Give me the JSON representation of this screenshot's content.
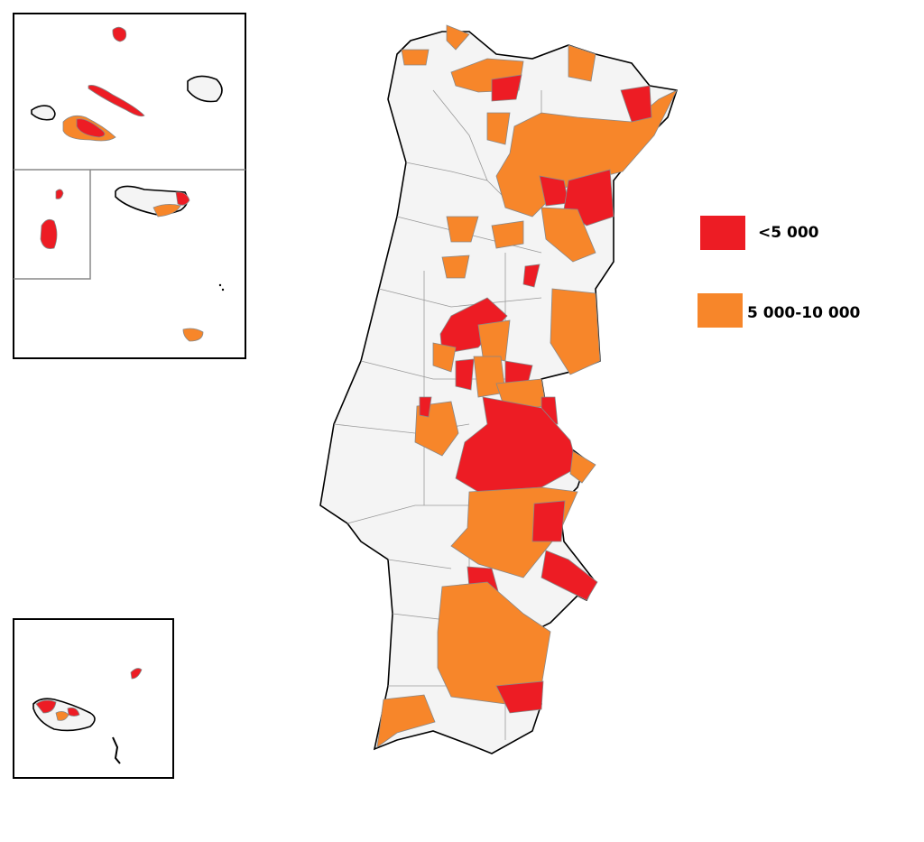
{
  "legend": {
    "items": [
      {
        "label": "<5 000",
        "color": "#ed1c24"
      },
      {
        "label": "5 000-10 000",
        "color": "#f7862a"
      }
    ]
  }
}
